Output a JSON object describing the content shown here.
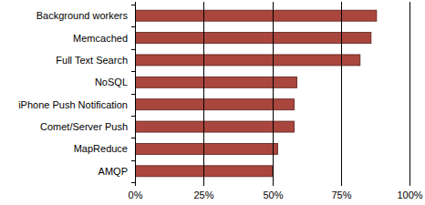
{
  "chart_data": {
    "type": "bar",
    "orientation": "horizontal",
    "categories": [
      "Background workers",
      "Memcached",
      "Full Text Search",
      "NoSQL",
      "iPhone Push Notification",
      "Comet/Server Push",
      "MapReduce",
      "AMQP"
    ],
    "values": [
      88,
      86,
      82,
      59,
      58,
      58,
      52,
      50
    ],
    "color": "#a9463d",
    "xlim": [
      0,
      100
    ],
    "xticks": [
      {
        "value": 0,
        "label": "0%"
      },
      {
        "value": 25,
        "label": "25%"
      },
      {
        "value": 50,
        "label": "50%"
      },
      {
        "value": 75,
        "label": "75%"
      },
      {
        "value": 100,
        "label": "100%"
      }
    ],
    "grid": true
  }
}
